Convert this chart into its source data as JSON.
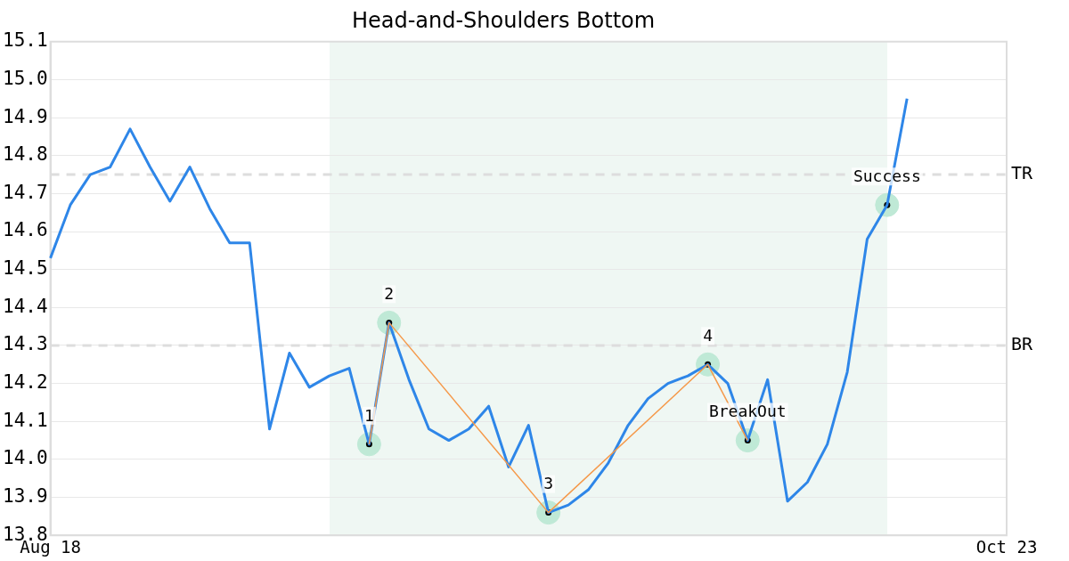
{
  "chart_data": {
    "type": "line",
    "title": "Head-and-Shoulders Bottom",
    "categories": [
      "Aug 18",
      null,
      null,
      null,
      null,
      null,
      null,
      null,
      null,
      null,
      null,
      null,
      null,
      null,
      null,
      null,
      null,
      null,
      null,
      null,
      null,
      null,
      null,
      null,
      null,
      null,
      null,
      null,
      null,
      null,
      null,
      null,
      null,
      null,
      null,
      null,
      null,
      null,
      null,
      null,
      null,
      null,
      null,
      null,
      null,
      null,
      null,
      null,
      "Oct 23"
    ],
    "series": [
      {
        "color": "#2e86e8",
        "values": [
          14.53,
          14.67,
          14.75,
          14.77,
          14.87,
          14.77,
          14.68,
          14.77,
          14.66,
          14.57,
          14.57,
          14.08,
          14.28,
          14.19,
          14.22,
          14.24,
          14.04,
          14.36,
          14.21,
          14.08,
          14.05,
          14.08,
          14.14,
          13.98,
          14.09,
          13.86,
          13.88,
          13.92,
          13.99,
          14.09,
          14.16,
          14.2,
          14.22,
          14.25,
          14.2,
          14.05,
          14.21,
          13.89,
          13.94,
          14.04,
          14.23,
          14.58,
          14.67,
          14.95,
          null,
          null,
          null,
          null,
          null
        ]
      },
      {
        "type": "line",
        "color": "#f5994a",
        "values": [
          null,
          null,
          null,
          null,
          null,
          null,
          null,
          null,
          null,
          null,
          null,
          null,
          null,
          null,
          null,
          null,
          14.04,
          14.36,
          null,
          null,
          null,
          null,
          null,
          null,
          null,
          13.86,
          null,
          null,
          null,
          null,
          null,
          null,
          null,
          14.25,
          null,
          14.05,
          null,
          null,
          null,
          null,
          null,
          null,
          null,
          null,
          null,
          null,
          null,
          null,
          null
        ]
      },
      {
        "type": "scatter",
        "marker": "circle",
        "color": "#bfe9d6",
        "values": [
          null,
          null,
          null,
          null,
          null,
          null,
          null,
          null,
          null,
          null,
          null,
          null,
          null,
          null,
          null,
          null,
          14.04,
          14.36,
          null,
          null,
          null,
          null,
          null,
          null,
          null,
          13.86,
          null,
          null,
          null,
          null,
          null,
          null,
          null,
          14.25,
          null,
          14.05,
          null,
          null,
          null,
          null,
          null,
          null,
          14.67,
          null,
          null,
          null,
          null,
          null,
          null
        ]
      }
    ],
    "ylim": [
      13.8,
      15.1
    ],
    "yticks": [
      13.8,
      13.9,
      {
        "value": 14,
        "label": "14.0"
      },
      14.1,
      14.2,
      14.3,
      14.4,
      14.5,
      14.6,
      14.7,
      14.8,
      14.9,
      {
        "value": 15,
        "label": "15.0"
      },
      15.1
    ],
    "grid": "y",
    "legend": false,
    "line_style": "solid",
    "ref_lines": [
      {
        "axis": "y",
        "value": 14.75,
        "label": "TR",
        "color": "#dddddd",
        "line_style": "dashed"
      },
      {
        "axis": "y",
        "value": 14.3,
        "label": "BR",
        "color": "#dddddd",
        "line_style": "dashed"
      }
    ],
    "annotations": [
      "1",
      "2",
      "3",
      "4",
      "BreakOut",
      "Success"
    ]
  }
}
